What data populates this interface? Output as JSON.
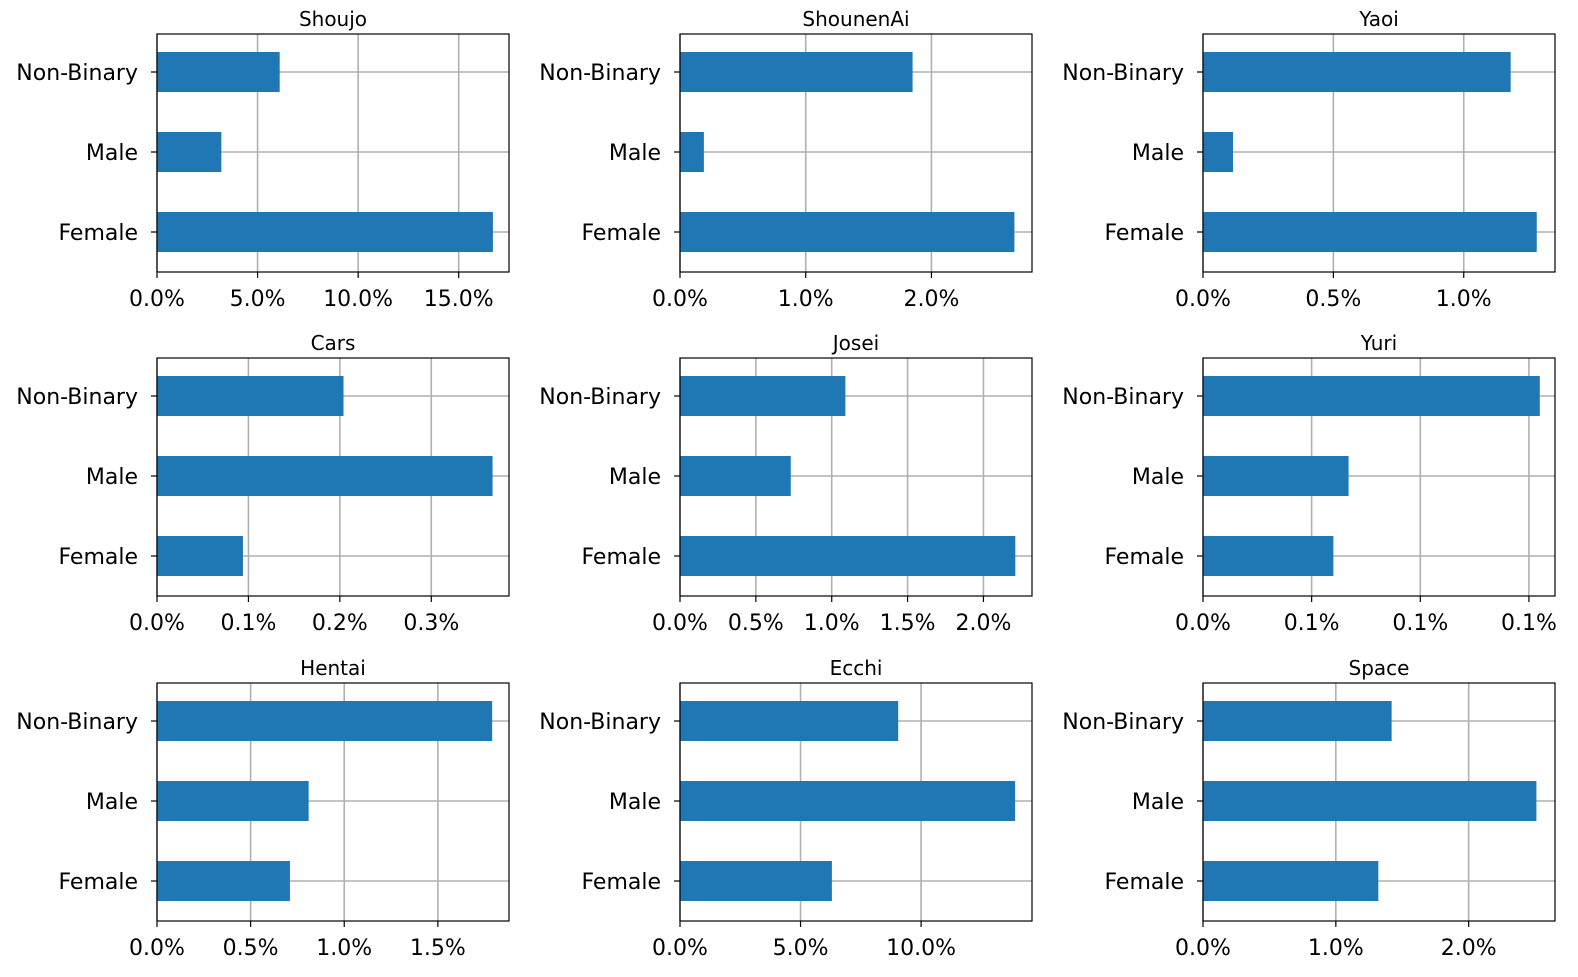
{
  "chart_data": [
    {
      "type": "bar",
      "orientation": "horizontal",
      "title": "Shoujo",
      "categories": [
        "Female",
        "Male",
        "Non-Binary"
      ],
      "values": [
        16.7,
        3.2,
        6.1
      ],
      "xlim": [
        0,
        17.5
      ],
      "xticks": [
        0,
        5,
        10,
        15
      ],
      "xtick_labels": [
        "0.0%",
        "5.0%",
        "10.0%",
        "15.0%"
      ],
      "grid": true
    },
    {
      "type": "bar",
      "orientation": "horizontal",
      "title": "ShounenAi",
      "categories": [
        "Female",
        "Male",
        "Non-Binary"
      ],
      "values": [
        2.66,
        0.19,
        1.85
      ],
      "xlim": [
        0,
        2.8
      ],
      "xticks": [
        0,
        1,
        2
      ],
      "xtick_labels": [
        "0.0%",
        "1.0%",
        "2.0%"
      ],
      "grid": true
    },
    {
      "type": "bar",
      "orientation": "horizontal",
      "title": "Yaoi",
      "categories": [
        "Female",
        "Male",
        "Non-Binary"
      ],
      "values": [
        1.28,
        0.115,
        1.18
      ],
      "xlim": [
        0,
        1.35
      ],
      "xticks": [
        0,
        0.5,
        1.0
      ],
      "xtick_labels": [
        "0.0%",
        "0.5%",
        "1.0%"
      ],
      "grid": true
    },
    {
      "type": "bar",
      "orientation": "horizontal",
      "title": "Cars",
      "categories": [
        "Female",
        "Male",
        "Non-Binary"
      ],
      "values": [
        0.094,
        0.367,
        0.204
      ],
      "xlim": [
        0,
        0.385
      ],
      "xticks": [
        0,
        0.1,
        0.2,
        0.3
      ],
      "xtick_labels": [
        "0.0%",
        "0.1%",
        "0.2%",
        "0.3%"
      ],
      "grid": true
    },
    {
      "type": "bar",
      "orientation": "horizontal",
      "title": "Josei",
      "categories": [
        "Female",
        "Male",
        "Non-Binary"
      ],
      "values": [
        2.21,
        0.73,
        1.09
      ],
      "xlim": [
        0,
        2.32
      ],
      "xticks": [
        0,
        0.5,
        1.0,
        1.5,
        2.0
      ],
      "xtick_labels": [
        "0.0%",
        "0.5%",
        "1.0%",
        "1.5%",
        "2.0%"
      ],
      "grid": true
    },
    {
      "type": "bar",
      "orientation": "horizontal",
      "title": "Yuri",
      "categories": [
        "Female",
        "Male",
        "Non-Binary"
      ],
      "values": [
        0.06,
        0.067,
        0.155
      ],
      "xlim": [
        0,
        0.162
      ],
      "xticks": [
        0,
        0.05,
        0.1,
        0.15
      ],
      "xtick_labels": [
        "0.0%",
        "0.1%",
        "0.1%",
        "0.1%"
      ],
      "grid": true
    },
    {
      "type": "bar",
      "orientation": "horizontal",
      "title": "Hentai",
      "categories": [
        "Female",
        "Male",
        "Non-Binary"
      ],
      "values": [
        0.71,
        0.81,
        1.79
      ],
      "xlim": [
        0,
        1.88
      ],
      "xticks": [
        0,
        0.5,
        1.0,
        1.5
      ],
      "xtick_labels": [
        "0.0%",
        "0.5%",
        "1.0%",
        "1.5%"
      ],
      "grid": true
    },
    {
      "type": "bar",
      "orientation": "horizontal",
      "title": "Ecchi",
      "categories": [
        "Female",
        "Male",
        "Non-Binary"
      ],
      "values": [
        6.3,
        13.9,
        9.05
      ],
      "xlim": [
        0,
        14.6
      ],
      "xticks": [
        0,
        5,
        10
      ],
      "xtick_labels": [
        "0.0%",
        "5.0%",
        "10.0%"
      ],
      "grid": true
    },
    {
      "type": "bar",
      "orientation": "horizontal",
      "title": "Space",
      "categories": [
        "Female",
        "Male",
        "Non-Binary"
      ],
      "values": [
        1.32,
        2.51,
        1.42
      ],
      "xlim": [
        0,
        2.65
      ],
      "xticks": [
        0,
        1,
        2
      ],
      "xtick_labels": [
        "0.0%",
        "1.0%",
        "2.0%"
      ],
      "grid": true
    }
  ],
  "colors": {
    "bar": "#1f77b4"
  }
}
